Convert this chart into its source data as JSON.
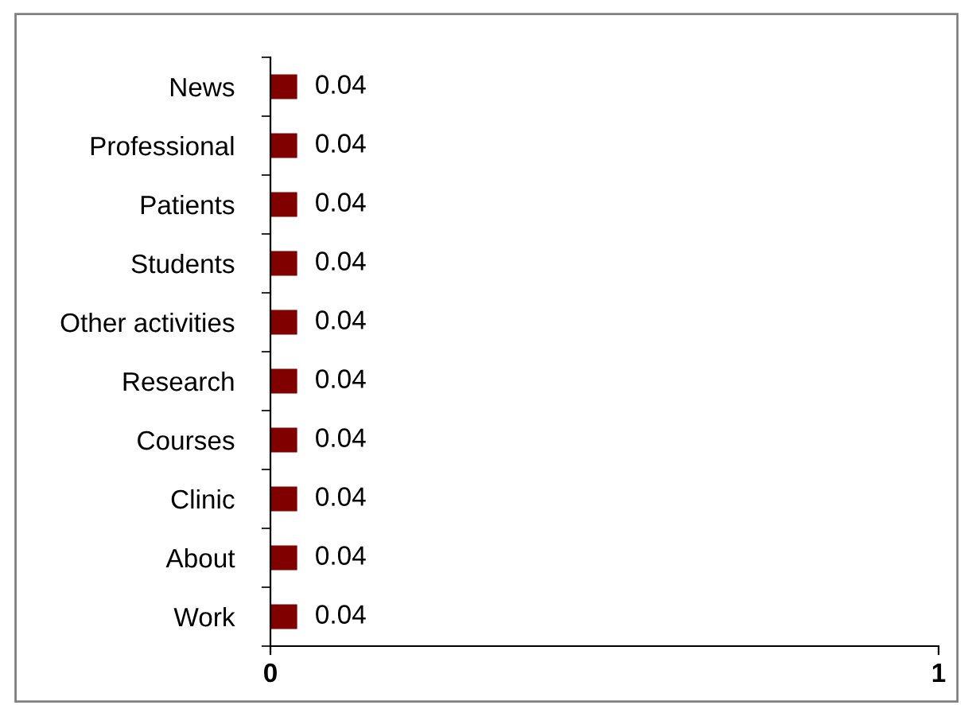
{
  "chart_data": {
    "type": "bar",
    "orientation": "horizontal",
    "categories": [
      "News",
      "Professional",
      "Patients",
      "Students",
      "Other activities",
      "Research",
      "Courses",
      "Clinic",
      "About",
      "Work"
    ],
    "values": [
      0.04,
      0.04,
      0.04,
      0.04,
      0.04,
      0.04,
      0.04,
      0.04,
      0.04,
      0.04
    ],
    "color": "#800000",
    "xlim": [
      0,
      1
    ],
    "xticks": [
      0,
      1
    ],
    "data_labels": true,
    "grid": false,
    "legend": false
  }
}
